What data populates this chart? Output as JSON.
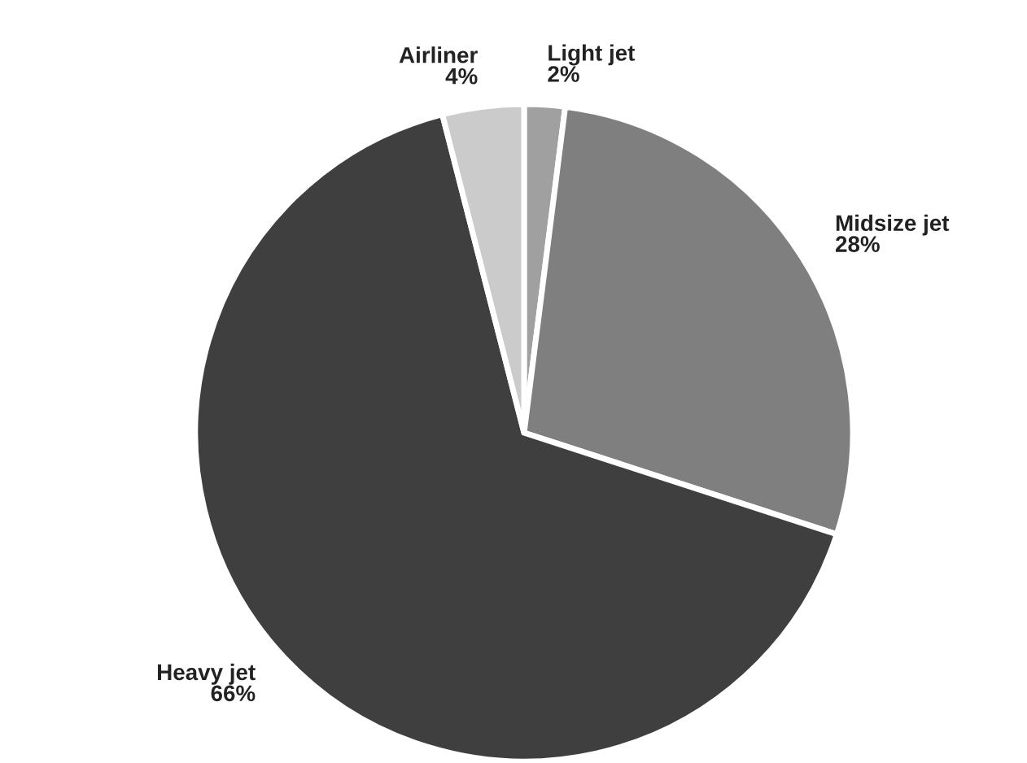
{
  "chart_data": {
    "type": "pie",
    "categories": [
      "Light jet",
      "Midsize jet",
      "Heavy jet",
      "Airliner"
    ],
    "values": [
      2,
      28,
      66,
      4
    ],
    "value_labels": [
      "2%",
      "28%",
      "66%",
      "4%"
    ],
    "colors": [
      "#a0a0a0",
      "#7f7f7f",
      "#3f3f3f",
      "#cbcbcb"
    ]
  }
}
